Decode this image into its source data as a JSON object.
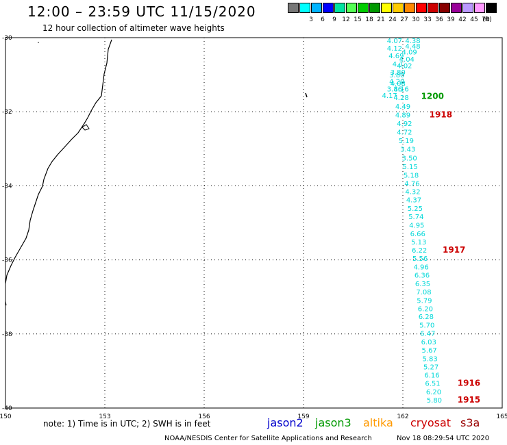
{
  "title": "12:00 – 23:59 UTC 11/15/2020",
  "subtitle": "12 hour collection of altimeter wave heights",
  "scale": {
    "unit_label": "(ft)",
    "bins": [
      {
        "label": "",
        "color": "#777777"
      },
      {
        "label": "3",
        "color": "#00ffff"
      },
      {
        "label": "6",
        "color": "#00b4ff"
      },
      {
        "label": "9",
        "color": "#0000ff"
      },
      {
        "label": "12",
        "color": "#00e4a0"
      },
      {
        "label": "15",
        "color": "#55ff55"
      },
      {
        "label": "18",
        "color": "#00cc00"
      },
      {
        "label": "21",
        "color": "#009900"
      },
      {
        "label": "24",
        "color": "#ffff00"
      },
      {
        "label": "27",
        "color": "#ffcc00"
      },
      {
        "label": "30",
        "color": "#ff8800"
      },
      {
        "label": "33",
        "color": "#ff0000"
      },
      {
        "label": "36",
        "color": "#cc0000"
      },
      {
        "label": "39",
        "color": "#880000"
      },
      {
        "label": "42",
        "color": "#990099"
      },
      {
        "label": "45",
        "color": "#bb99ff"
      },
      {
        "label": "70",
        "color": "#ff99ff"
      },
      {
        "label": "",
        "color": "#000000"
      }
    ]
  },
  "axes": {
    "lon_ticks": [
      "150",
      "153",
      "156",
      "159",
      "162",
      "165"
    ],
    "lat_ticks": [
      "-30",
      "-32",
      "-34",
      "-36",
      "-38",
      "-40"
    ]
  },
  "colors": {
    "jason2": "#0000cc",
    "jason3": "#009900",
    "altika": "#ff9900",
    "cryosat": "#cc0000",
    "s3a": "#990000",
    "obs": "#00d8d8"
  },
  "observations": [
    {
      "v": "4.07",
      "lon": 161.75,
      "lat": -30.15
    },
    {
      "v": "4.38",
      "lon": 162.3,
      "lat": -30.15
    },
    {
      "v": "4.12",
      "lon": 161.75,
      "lat": -30.35
    },
    {
      "v": "4.48",
      "lon": 162.3,
      "lat": -30.3
    },
    {
      "v": "4.69",
      "lon": 161.8,
      "lat": -30.55
    },
    {
      "v": "4.09",
      "lon": 162.2,
      "lat": -30.45
    },
    {
      "v": "4.04",
      "lon": 162.12,
      "lat": -30.65
    },
    {
      "v": "4.1",
      "lon": 161.85,
      "lat": -30.78
    },
    {
      "v": "4.02",
      "lon": 162.05,
      "lat": -30.82
    },
    {
      "v": "3.80",
      "lon": 161.85,
      "lat": -31.0
    },
    {
      "v": "3.80",
      "lon": 161.82,
      "lat": -31.07
    },
    {
      "v": "4.20",
      "lon": 161.82,
      "lat": -31.25
    },
    {
      "v": "4.08",
      "lon": 161.85,
      "lat": -31.3
    },
    {
      "v": "3.86",
      "lon": 161.75,
      "lat": -31.45
    },
    {
      "v": "4.16",
      "lon": 161.95,
      "lat": -31.45
    },
    {
      "v": "4.17",
      "lon": 161.6,
      "lat": -31.63
    },
    {
      "v": "4.28",
      "lon": 161.95,
      "lat": -31.68
    },
    {
      "v": "4.49",
      "lon": 162.0,
      "lat": -31.92
    },
    {
      "v": "4.89",
      "lon": 162.0,
      "lat": -32.15
    },
    {
      "v": "4.92",
      "lon": 162.05,
      "lat": -32.38
    },
    {
      "v": "4.72",
      "lon": 162.05,
      "lat": -32.62
    },
    {
      "v": "5.19",
      "lon": 162.1,
      "lat": -32.85
    },
    {
      "v": "3.43",
      "lon": 162.15,
      "lat": -33.08
    },
    {
      "v": "3.50",
      "lon": 162.2,
      "lat": -33.32
    },
    {
      "v": "5.15",
      "lon": 162.22,
      "lat": -33.55
    },
    {
      "v": "5.18",
      "lon": 162.25,
      "lat": -33.78
    },
    {
      "v": "4.76",
      "lon": 162.28,
      "lat": -34.0
    },
    {
      "v": "4.32",
      "lon": 162.3,
      "lat": -34.22
    },
    {
      "v": "4.37",
      "lon": 162.33,
      "lat": -34.45
    },
    {
      "v": "5.25",
      "lon": 162.37,
      "lat": -34.68
    },
    {
      "v": "5.74",
      "lon": 162.4,
      "lat": -34.9
    },
    {
      "v": "4.95",
      "lon": 162.42,
      "lat": -35.13
    },
    {
      "v": "6.66",
      "lon": 162.45,
      "lat": -35.36
    },
    {
      "v": "5.13",
      "lon": 162.48,
      "lat": -35.58
    },
    {
      "v": "6.22",
      "lon": 162.5,
      "lat": -35.8
    },
    {
      "v": "5.56",
      "lon": 162.52,
      "lat": -36.03
    },
    {
      "v": "4.96",
      "lon": 162.55,
      "lat": -36.26
    },
    {
      "v": "6.36",
      "lon": 162.58,
      "lat": -36.48
    },
    {
      "v": "6.35",
      "lon": 162.6,
      "lat": -36.71
    },
    {
      "v": "7.08",
      "lon": 162.63,
      "lat": -36.93
    },
    {
      "v": "5.79",
      "lon": 162.65,
      "lat": -37.16
    },
    {
      "v": "6.20",
      "lon": 162.68,
      "lat": -37.38
    },
    {
      "v": "6.28",
      "lon": 162.7,
      "lat": -37.6
    },
    {
      "v": "5.70",
      "lon": 162.73,
      "lat": -37.83
    },
    {
      "v": "6.47",
      "lon": 162.75,
      "lat": -38.05
    },
    {
      "v": "6.03",
      "lon": 162.78,
      "lat": -38.28
    },
    {
      "v": "5.67",
      "lon": 162.8,
      "lat": -38.5
    },
    {
      "v": "5.83",
      "lon": 162.82,
      "lat": -38.73
    },
    {
      "v": "5.27",
      "lon": 162.85,
      "lat": -38.96
    },
    {
      "v": "6.16",
      "lon": 162.88,
      "lat": -39.18
    },
    {
      "v": "6.51",
      "lon": 162.9,
      "lat": -39.4
    },
    {
      "v": "6.20",
      "lon": 162.93,
      "lat": -39.63
    },
    {
      "v": "5.80",
      "lon": 162.95,
      "lat": -39.85
    }
  ],
  "time_labels": [
    {
      "t": "1200",
      "sat": "jason3",
      "lon": 162.55,
      "lat": -31.65
    },
    {
      "t": "1918",
      "sat": "cryosat",
      "lon": 162.8,
      "lat": -32.15
    },
    {
      "t": "1917",
      "sat": "cryosat",
      "lon": 163.2,
      "lat": -35.8
    },
    {
      "t": "1916",
      "sat": "cryosat",
      "lon": 163.65,
      "lat": -39.4
    },
    {
      "t": "1915",
      "sat": "cryosat",
      "lon": 163.65,
      "lat": -39.85
    }
  ],
  "note": "note: 1) Time is in UTC; 2) SWH is in feet",
  "satellites": [
    {
      "name": "jason2",
      "key": "jason2"
    },
    {
      "name": "jason3",
      "key": "jason3"
    },
    {
      "name": "altika",
      "key": "altika"
    },
    {
      "name": "cryosat",
      "key": "cryosat"
    },
    {
      "name": "s3a",
      "key": "s3a"
    }
  ],
  "credit": "NOAA/NESDIS Center for Satellite Applications and Research",
  "timestamp": "Nov 18 08:29:54 UTC 2020"
}
